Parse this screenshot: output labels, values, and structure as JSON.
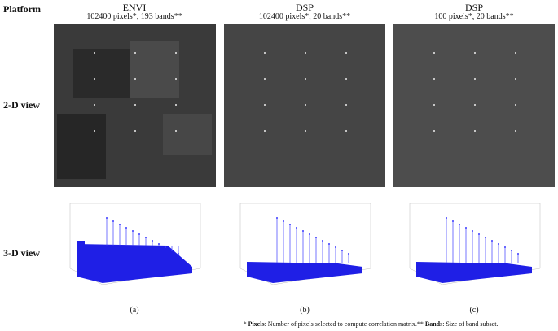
{
  "header": {
    "row_header": "Platform"
  },
  "columns": [
    {
      "title": "ENVI",
      "subtitle": "102400 pixels*, 193 bands**",
      "caption": "(a)"
    },
    {
      "title": "DSP",
      "subtitle": "102400 pixels*, 20 bands**",
      "caption": "(b)"
    },
    {
      "title": "DSP",
      "subtitle": "100 pixels*, 20 bands**",
      "caption": "(c)"
    }
  ],
  "rows": [
    {
      "label": "2-D view"
    },
    {
      "label": "3-D view"
    }
  ],
  "footnote": {
    "parts": [
      "* ",
      "Pixels",
      ": Number of pixels selected to compute correlation matrix.** ",
      "Bands",
      ": Size of band subset."
    ]
  }
}
